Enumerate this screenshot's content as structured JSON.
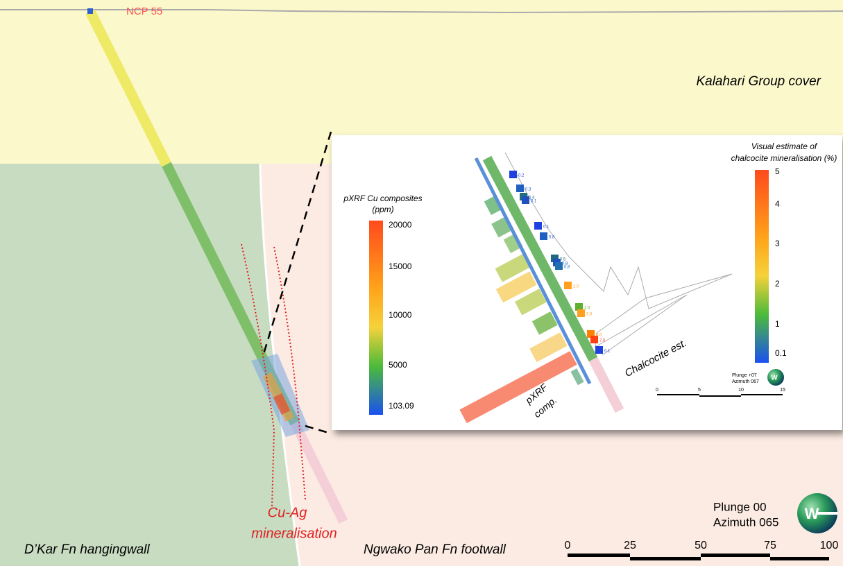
{
  "hole_label": "NCP 55",
  "units": {
    "cover": "Kalahari Group cover",
    "hangingwall": "D’Kar Fn hangingwall",
    "footwall": "Ngwako Pan Fn footwall"
  },
  "mineralisation": [
    "Cu-Ag",
    "mineralisation"
  ],
  "view": {
    "plunge": "Plunge 00",
    "azimuth": "Azimuth 065",
    "compass": "W"
  },
  "scale": [
    "0",
    "25",
    "50",
    "75",
    "100"
  ],
  "inset": {
    "pxrf_legend": {
      "title": [
        "pXRF Cu composites",
        "(ppm)"
      ],
      "labels": [
        "20000",
        "15000",
        "10000",
        "5000",
        "103.09"
      ]
    },
    "chalcocite_legend": {
      "title": [
        "Visual estimate of",
        "chalcocite mineralisation (%)"
      ],
      "labels": [
        "5",
        "4",
        "3",
        "2",
        "1",
        "0.1"
      ]
    },
    "chalcocite_trace": "Chalcocite est.",
    "pxrf_trace": [
      "pXRF",
      "comp."
    ],
    "sample_labels": [
      "0.2",
      "0.3",
      "0.4",
      "0.1",
      "0.1",
      "0.8",
      "0.5",
      "0.8",
      "0.8",
      "2.0",
      "1.0",
      "3.0",
      "5.0",
      "7.0",
      "0.1"
    ],
    "view": {
      "plunge": "Plunge +07",
      "azimuth": "Azimuth 067",
      "compass": "W"
    },
    "scale": [
      "0",
      "5",
      "10",
      "15"
    ]
  }
}
